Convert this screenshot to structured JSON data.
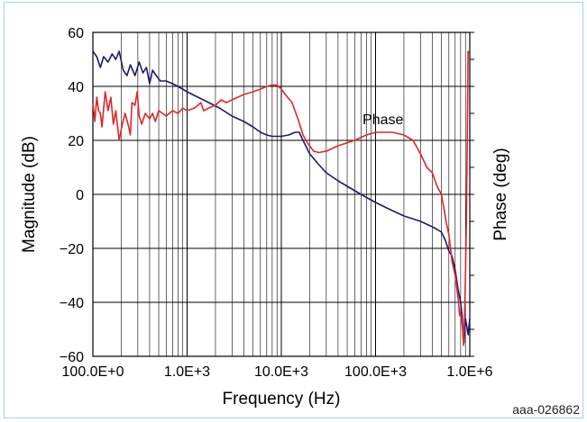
{
  "figure_id": "aaa-026862",
  "chart_data": {
    "type": "line",
    "xlabel": "Frequency (Hz)",
    "ylabel_left": "Magnitude (dB)",
    "ylabel_right": "Phase (deg)",
    "x_scale": "log",
    "xlim": [
      100,
      1000000
    ],
    "ylim": [
      -60,
      60
    ],
    "x_ticks": [
      {
        "value": 100,
        "label": "100.0E+0"
      },
      {
        "value": 1000,
        "label": "1.0E+3"
      },
      {
        "value": 10000,
        "label": "10.0E+3"
      },
      {
        "value": 100000,
        "label": "100.0E+3"
      },
      {
        "value": 1000000,
        "label": "1.0E+6"
      }
    ],
    "y_ticks": [
      {
        "value": 60,
        "label": "60"
      },
      {
        "value": 40,
        "label": "40"
      },
      {
        "value": 20,
        "label": "20"
      },
      {
        "value": 0,
        "label": "0"
      },
      {
        "value": -20,
        "label": "−20"
      },
      {
        "value": -40,
        "label": "−40"
      },
      {
        "value": -60,
        "label": "−60"
      }
    ],
    "grid": true,
    "annotations": [
      {
        "text": "Phase",
        "x": 120000,
        "y": 26
      }
    ],
    "series": [
      {
        "key": "magnitude",
        "color": "#1c1a6e",
        "points": [
          [
            100,
            53
          ],
          [
            110,
            51
          ],
          [
            120,
            47
          ],
          [
            130,
            51
          ],
          [
            145,
            49
          ],
          [
            160,
            52
          ],
          [
            175,
            50
          ],
          [
            190,
            53
          ],
          [
            210,
            46
          ],
          [
            230,
            44
          ],
          [
            250,
            48
          ],
          [
            280,
            44
          ],
          [
            310,
            49
          ],
          [
            340,
            45
          ],
          [
            370,
            47
          ],
          [
            400,
            41
          ],
          [
            430,
            46
          ],
          [
            470,
            44
          ],
          [
            520,
            42
          ],
          [
            600,
            42
          ],
          [
            700,
            41
          ],
          [
            800,
            40
          ],
          [
            1000,
            38
          ],
          [
            1300,
            36
          ],
          [
            1700,
            34
          ],
          [
            2200,
            32
          ],
          [
            3000,
            29
          ],
          [
            4000,
            27
          ],
          [
            5000,
            25
          ],
          [
            6000,
            23
          ],
          [
            7000,
            22
          ],
          [
            8000,
            21.5
          ],
          [
            10000,
            21.5
          ],
          [
            12000,
            22
          ],
          [
            14000,
            23
          ],
          [
            15500,
            23
          ],
          [
            17000,
            20
          ],
          [
            20000,
            15
          ],
          [
            25000,
            11
          ],
          [
            30000,
            8
          ],
          [
            40000,
            5
          ],
          [
            50000,
            3
          ],
          [
            70000,
            0
          ],
          [
            100000,
            -3
          ],
          [
            150000,
            -6
          ],
          [
            200000,
            -8
          ],
          [
            300000,
            -10
          ],
          [
            400000,
            -12
          ],
          [
            450000,
            -13
          ],
          [
            500000,
            -14
          ],
          [
            550000,
            -17
          ],
          [
            600000,
            -21
          ],
          [
            650000,
            -23
          ],
          [
            700000,
            -28
          ],
          [
            750000,
            -35
          ],
          [
            800000,
            -40
          ],
          [
            830000,
            -45
          ],
          [
            850000,
            -53
          ],
          [
            870000,
            -55
          ],
          [
            900000,
            -46
          ],
          [
            930000,
            -49
          ],
          [
            960000,
            -52
          ],
          [
            1000000,
            -46
          ]
        ]
      },
      {
        "key": "phase",
        "color": "#e0262a",
        "points": [
          [
            100,
            34
          ],
          [
            105,
            27
          ],
          [
            110,
            36
          ],
          [
            115,
            31
          ],
          [
            120,
            30
          ],
          [
            125,
            25
          ],
          [
            135,
            38
          ],
          [
            145,
            31
          ],
          [
            155,
            36
          ],
          [
            165,
            26
          ],
          [
            175,
            31
          ],
          [
            190,
            20
          ],
          [
            205,
            26
          ],
          [
            220,
            30
          ],
          [
            240,
            25
          ],
          [
            250,
            22
          ],
          [
            260,
            34
          ],
          [
            280,
            33
          ],
          [
            295,
            38
          ],
          [
            300,
            35
          ],
          [
            310,
            29
          ],
          [
            330,
            26
          ],
          [
            360,
            30
          ],
          [
            400,
            28
          ],
          [
            430,
            30
          ],
          [
            460,
            27
          ],
          [
            500,
            31
          ],
          [
            600,
            29
          ],
          [
            700,
            31
          ],
          [
            800,
            30
          ],
          [
            900,
            32
          ],
          [
            1000,
            31
          ],
          [
            1200,
            32
          ],
          [
            1300,
            33
          ],
          [
            1400,
            34
          ],
          [
            1500,
            31
          ],
          [
            1700,
            32
          ],
          [
            2000,
            33
          ],
          [
            2300,
            35
          ],
          [
            2600,
            34
          ],
          [
            3000,
            35
          ],
          [
            4000,
            37
          ],
          [
            5000,
            38
          ],
          [
            6000,
            39
          ],
          [
            7000,
            40
          ],
          [
            8000,
            40.5
          ],
          [
            9000,
            40.5
          ],
          [
            10000,
            39
          ],
          [
            11000,
            37
          ],
          [
            13000,
            34
          ],
          [
            15000,
            28
          ],
          [
            17000,
            22
          ],
          [
            19000,
            19
          ],
          [
            22000,
            16
          ],
          [
            25000,
            15.5
          ],
          [
            30000,
            16
          ],
          [
            40000,
            18
          ],
          [
            60000,
            20
          ],
          [
            80000,
            22
          ],
          [
            100000,
            23
          ],
          [
            150000,
            23
          ],
          [
            200000,
            22
          ],
          [
            250000,
            20
          ],
          [
            300000,
            15
          ],
          [
            350000,
            10
          ],
          [
            400000,
            8
          ],
          [
            450000,
            3
          ],
          [
            500000,
            0
          ],
          [
            530000,
            -5
          ],
          [
            560000,
            -10
          ],
          [
            600000,
            -15
          ],
          [
            650000,
            -25
          ],
          [
            700000,
            -30
          ],
          [
            730000,
            -35
          ],
          [
            760000,
            -40
          ],
          [
            780000,
            -45
          ],
          [
            800000,
            -44
          ],
          [
            820000,
            -47
          ],
          [
            840000,
            -50
          ],
          [
            860000,
            -56
          ],
          [
            880000,
            -45
          ],
          [
            900000,
            -30
          ],
          [
            920000,
            -10
          ],
          [
            940000,
            20
          ],
          [
            960000,
            53
          ],
          [
            990000,
            52
          ]
        ]
      }
    ]
  }
}
